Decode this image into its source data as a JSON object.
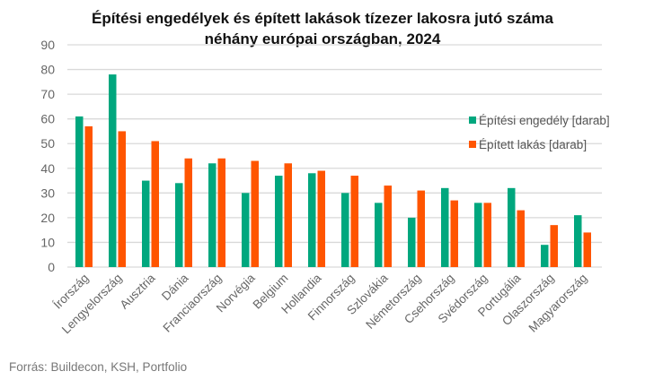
{
  "chart_data": {
    "type": "bar",
    "title": [
      "Építési engedélyek és épített lakások tízezer lakosra jutó száma",
      "néhány európai országban, 2024"
    ],
    "xlabel": "",
    "ylabel": "",
    "ylim": [
      0,
      90
    ],
    "yticks": [
      0,
      10,
      20,
      30,
      40,
      50,
      60,
      70,
      80,
      90
    ],
    "grid": true,
    "legend_position": "right",
    "categories": [
      "Írország",
      "Lengyelország",
      "Ausztria",
      "Dánia",
      "Franciaország",
      "Norvégia",
      "Belgium",
      "Hollandia",
      "Finnország",
      "Szlovákia",
      "Németország",
      "Csehország",
      "Svédország",
      "Portugália",
      "Olaszország",
      "Magyarország"
    ],
    "series": [
      {
        "name": "Építési engedély [darab]",
        "color": "#00A77E",
        "values": [
          61,
          78,
          35,
          34,
          42,
          30,
          37,
          38,
          30,
          26,
          20,
          32,
          26,
          32,
          9,
          21
        ]
      },
      {
        "name": "Épített lakás [darab]",
        "color": "#FF5500",
        "values": [
          57,
          55,
          51,
          44,
          44,
          43,
          42,
          39,
          37,
          33,
          31,
          27,
          26,
          23,
          17,
          14
        ]
      }
    ],
    "source": "Forrás: Buildecon, KSH, Portfolio"
  }
}
